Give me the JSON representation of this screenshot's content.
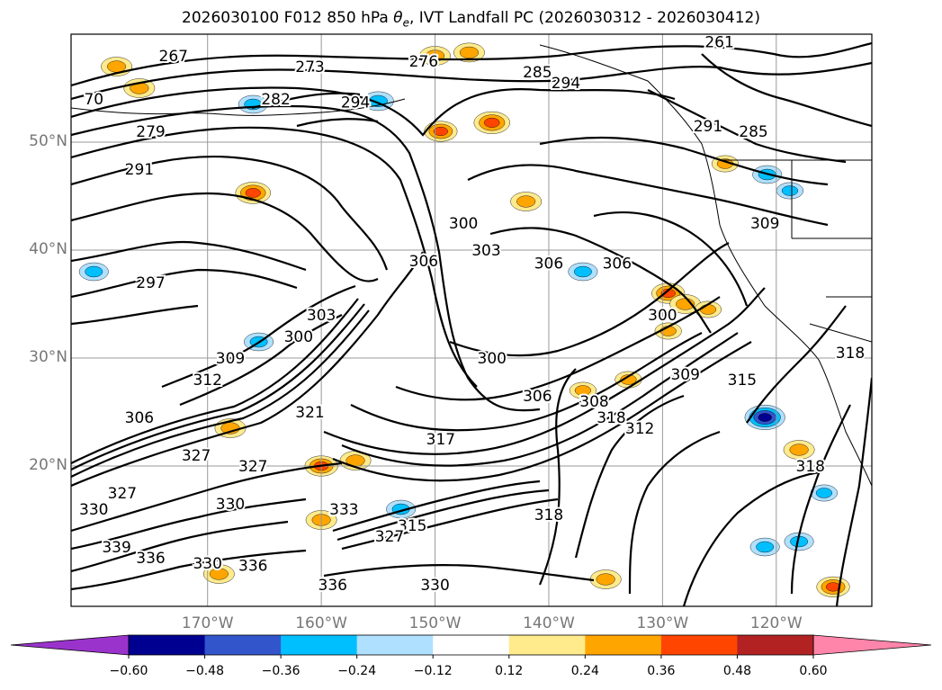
{
  "title": "2026030100 F012 850 hPa θe, IVT Landfall PC (2026030312 - 2026030412)",
  "title_parts": {
    "prefix": "2026030100 F012 850 hPa ",
    "theta": "θ",
    "sub": "e",
    "suffix": ", IVT Landfall PC (2026030312 - 2026030412)"
  },
  "chart_data": {
    "type": "heatmap",
    "description_of_fields": "filled: IVT landfall PC; contours: 850 hPa theta-e",
    "lat_labels": [
      "50°N",
      "40°N",
      "30°N",
      "20°N"
    ],
    "lon_labels": [
      "170°W",
      "160°W",
      "150°W",
      "140°W",
      "130°W",
      "120°W"
    ],
    "colorbar": {
      "ticks": [
        "−0.60",
        "−0.48",
        "−0.36",
        "−0.24",
        "−0.12",
        "0.12",
        "0.24",
        "0.36",
        "0.48",
        "0.60"
      ],
      "levels": [
        -0.6,
        -0.48,
        -0.36,
        -0.24,
        -0.12,
        0.12,
        0.24,
        0.36,
        0.48,
        0.6
      ],
      "colors": [
        "#9a33cc",
        "#000090",
        "#3355cc",
        "#00bfff",
        "#b0e0ff",
        "#ffffff",
        "#ffea8c",
        "#ffa500",
        "#ff4500",
        "#b22222",
        "#ff85aa"
      ],
      "extend": "both"
    },
    "contour_labels": [
      {
        "text": "267",
        "lon": -173,
        "lat": 57.5
      },
      {
        "text": "273",
        "lon": -161,
        "lat": 56.5
      },
      {
        "text": "276",
        "lon": -151,
        "lat": 57
      },
      {
        "text": "282",
        "lon": -164,
        "lat": 53.5
      },
      {
        "text": "294",
        "lon": -157,
        "lat": 53.2
      },
      {
        "text": "285",
        "lon": -141,
        "lat": 56
      },
      {
        "text": "294",
        "lon": -138.5,
        "lat": 55
      },
      {
        "text": "279",
        "lon": -175,
        "lat": 50.5
      },
      {
        "text": "291",
        "lon": -176,
        "lat": 47
      },
      {
        "text": "297",
        "lon": -175,
        "lat": 36.5
      },
      {
        "text": "300",
        "lon": -147.5,
        "lat": 42
      },
      {
        "text": "303",
        "lon": -145.5,
        "lat": 39.5
      },
      {
        "text": "306",
        "lon": -151,
        "lat": 38.5
      },
      {
        "text": "306",
        "lon": -140,
        "lat": 38.3
      },
      {
        "text": "306",
        "lon": -134,
        "lat": 38.3
      },
      {
        "text": "291",
        "lon": -126,
        "lat": 51
      },
      {
        "text": "285",
        "lon": -122,
        "lat": 50.5
      },
      {
        "text": "309",
        "lon": -121,
        "lat": 42
      },
      {
        "text": "300",
        "lon": -130,
        "lat": 33.5
      },
      {
        "text": "303",
        "lon": -160,
        "lat": 33.5
      },
      {
        "text": "300",
        "lon": -162,
        "lat": 31.5
      },
      {
        "text": "309",
        "lon": -168,
        "lat": 29.5
      },
      {
        "text": "312",
        "lon": -170,
        "lat": 27.5
      },
      {
        "text": "300",
        "lon": -145,
        "lat": 29.5
      },
      {
        "text": "306",
        "lon": -141,
        "lat": 26
      },
      {
        "text": "308",
        "lon": -136,
        "lat": 25.5
      },
      {
        "text": "318",
        "lon": -134.5,
        "lat": 24
      },
      {
        "text": "309",
        "lon": -128,
        "lat": 28
      },
      {
        "text": "315",
        "lon": -123,
        "lat": 27.5
      },
      {
        "text": "312",
        "lon": -132,
        "lat": 23
      },
      {
        "text": "306",
        "lon": -176,
        "lat": 24
      },
      {
        "text": "321",
        "lon": -161,
        "lat": 24.5
      },
      {
        "text": "317",
        "lon": -149.5,
        "lat": 22
      },
      {
        "text": "327",
        "lon": -171,
        "lat": 20.5
      },
      {
        "text": "327",
        "lon": -166,
        "lat": 19.5
      },
      {
        "text": "330",
        "lon": -180,
        "lat": 15.5
      },
      {
        "text": "327",
        "lon": -177.5,
        "lat": 17
      },
      {
        "text": "330",
        "lon": -168,
        "lat": 16
      },
      {
        "text": "333",
        "lon": -158,
        "lat": 15.5
      },
      {
        "text": "315",
        "lon": -152,
        "lat": 14
      },
      {
        "text": "327",
        "lon": -154,
        "lat": 13
      },
      {
        "text": "318",
        "lon": -140,
        "lat": 15
      },
      {
        "text": "318",
        "lon": -117,
        "lat": 19.5
      },
      {
        "text": "318",
        "lon": -113.5,
        "lat": 30
      },
      {
        "text": "339",
        "lon": -178,
        "lat": 12
      },
      {
        "text": "336",
        "lon": -175,
        "lat": 11
      },
      {
        "text": "330",
        "lon": -170,
        "lat": 10.5
      },
      {
        "text": "336",
        "lon": -166,
        "lat": 10.3
      },
      {
        "text": "336",
        "lon": -159,
        "lat": 8.5
      },
      {
        "text": "330",
        "lon": -150,
        "lat": 8.5
      },
      {
        "text": "261",
        "lon": -125,
        "lat": 58.8
      },
      {
        "text": "70",
        "lon": -180,
        "lat": 53.5
      }
    ],
    "ipc_blobs": [
      {
        "lon": -178,
        "lat": 57,
        "v": 0.4
      },
      {
        "lon": -176,
        "lat": 55,
        "v": 0.4
      },
      {
        "lon": -150,
        "lat": 58,
        "v": 0.4
      },
      {
        "lon": -147,
        "lat": 58.3,
        "v": 0.4
      },
      {
        "lon": -145,
        "lat": 51.8,
        "v": 0.52
      },
      {
        "lon": -149.5,
        "lat": 51,
        "v": 0.45
      },
      {
        "lon": -142,
        "lat": 44.5,
        "v": 0.4
      },
      {
        "lon": -137,
        "lat": 38,
        "v": -0.36
      },
      {
        "lon": -129.5,
        "lat": 36,
        "v": 0.45
      },
      {
        "lon": -128,
        "lat": 35,
        "v": 0.4
      },
      {
        "lon": -126,
        "lat": 34.5,
        "v": 0.3
      },
      {
        "lon": -121,
        "lat": 24.5,
        "v": -0.62
      },
      {
        "lon": -118,
        "lat": 21.5,
        "v": 0.4
      },
      {
        "lon": -166,
        "lat": 45.3,
        "v": 0.5
      },
      {
        "lon": -166,
        "lat": 53.5,
        "v": -0.36
      },
      {
        "lon": -155,
        "lat": 53.8,
        "v": -0.4
      },
      {
        "lon": -133,
        "lat": 28,
        "v": 0.3
      },
      {
        "lon": -129.5,
        "lat": 32.5,
        "v": 0.3
      },
      {
        "lon": -168,
        "lat": 23.5,
        "v": 0.4
      },
      {
        "lon": -160,
        "lat": 20,
        "v": 0.45
      },
      {
        "lon": -153,
        "lat": 16,
        "v": -0.36
      },
      {
        "lon": -160,
        "lat": 15,
        "v": 0.4
      },
      {
        "lon": -118,
        "lat": 13,
        "v": -0.36
      },
      {
        "lon": -121,
        "lat": 12.5,
        "v": -0.36
      },
      {
        "lon": -115,
        "lat": 8.8,
        "v": 0.45
      },
      {
        "lon": -135,
        "lat": 9.5,
        "v": 0.4
      },
      {
        "lon": -165.5,
        "lat": 31.5,
        "v": -0.36
      },
      {
        "lon": -157,
        "lat": 20.5,
        "v": 0.4
      },
      {
        "lon": -180,
        "lat": 38,
        "v": -0.36
      },
      {
        "lon": -169,
        "lat": 10,
        "v": 0.4
      },
      {
        "lon": -137,
        "lat": 27,
        "v": 0.3
      },
      {
        "lon": -115.8,
        "lat": 17.5,
        "v": -0.3
      },
      {
        "lon": -120.8,
        "lat": 47,
        "v": -0.36
      },
      {
        "lon": -118.8,
        "lat": 45.5,
        "v": -0.3
      },
      {
        "lon": -124.5,
        "lat": 48,
        "v": 0.3
      }
    ]
  }
}
